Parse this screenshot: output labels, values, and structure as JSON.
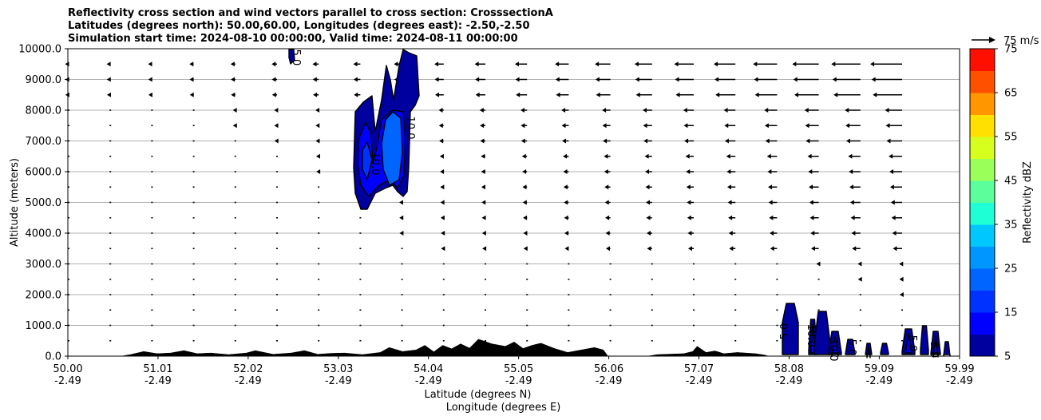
{
  "title_lines": [
    "Reflectivity cross section and wind vectors parallel to cross section: CrosssectionA",
    "Latitudes (degrees north): 50.00,60.00, Longitudes (degrees east): -2.50,-2.50",
    "Simulation start time: 2024-08-10 00:00:00, Valid time: 2024-08-11 00:00:00"
  ],
  "chart_data": {
    "type": "contour",
    "xlabel_lat": "Latitude (degrees N)",
    "xlabel_lon": "Longitude (degrees E)",
    "ylabel": "Altitude (meters)",
    "ylim": [
      0,
      10000
    ],
    "xlim": [
      50.0,
      59.99
    ],
    "x_ticks": [
      {
        "lat": "50.00",
        "lon": "-2.49",
        "value": 50.0
      },
      {
        "lat": "51.01",
        "lon": "-2.49",
        "value": 51.01
      },
      {
        "lat": "52.02",
        "lon": "-2.49",
        "value": 52.02
      },
      {
        "lat": "53.03",
        "lon": "-2.49",
        "value": 53.03
      },
      {
        "lat": "54.04",
        "lon": "-2.49",
        "value": 54.04
      },
      {
        "lat": "55.05",
        "lon": "-2.49",
        "value": 55.05
      },
      {
        "lat": "56.06",
        "lon": "-2.49",
        "value": 56.06
      },
      {
        "lat": "57.07",
        "lon": "-2.49",
        "value": 57.07
      },
      {
        "lat": "58.08",
        "lon": "-2.49",
        "value": 58.08
      },
      {
        "lat": "59.09",
        "lon": "-2.49",
        "value": 59.09
      },
      {
        "lat": "59.99",
        "lon": "-2.49",
        "value": 59.99
      }
    ],
    "y_ticks": [
      "0.0",
      "1000.0",
      "2000.0",
      "3000.0",
      "4000.0",
      "5000.0",
      "6000.0",
      "7000.0",
      "8000.0",
      "9000.0",
      "10000.0"
    ],
    "y_tick_values": [
      0,
      1000,
      2000,
      3000,
      4000,
      5000,
      6000,
      7000,
      8000,
      9000,
      10000
    ],
    "grid": "horizontal",
    "colorbar": {
      "label": "Reflectivity dBZ",
      "levels": [
        5,
        10,
        15,
        20,
        25,
        30,
        35,
        40,
        45,
        50,
        55,
        60,
        65,
        70,
        75
      ],
      "tick_labels": [
        "5",
        "15",
        "25",
        "35",
        "45",
        "55",
        "65",
        "75"
      ],
      "tick_values": [
        5,
        15,
        25,
        35,
        45,
        55,
        65,
        75
      ],
      "colors": [
        "#00009f",
        "#0000ff",
        "#0032ff",
        "#0064ff",
        "#0096ff",
        "#00c8ff",
        "#1effd6",
        "#5aff9c",
        "#9bff5a",
        "#d7ff1e",
        "#ffe000",
        "#ff9600",
        "#ff5000",
        "#ff0f00",
        "#a50000"
      ]
    },
    "wind_legend": "75 m/s",
    "contour_labels": [
      "5.0",
      "10.0",
      "15.0",
      "20.0"
    ]
  }
}
